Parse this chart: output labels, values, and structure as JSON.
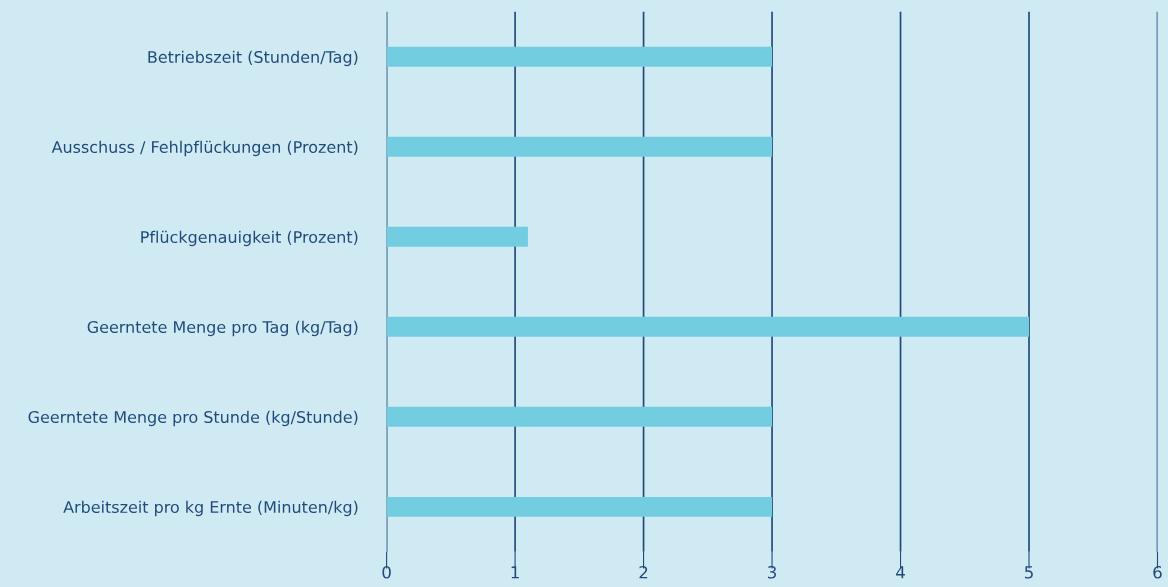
{
  "chart_data": {
    "type": "bar",
    "orientation": "horizontal",
    "categories": [
      "Betriebszeit (Stunden/Tag)",
      "Ausschuss / Fehlpflückungen (Prozent)",
      "Pflückgenauigkeit (Prozent)",
      "Geerntete Menge pro Tag (kg/Tag)",
      "Geerntete Menge pro Stunde (kg/Stunde)",
      "Arbeitszeit pro kg Ernte (Minuten/kg)"
    ],
    "values": [
      3,
      3,
      1.1,
      5,
      3,
      3
    ],
    "color": "#72cde0",
    "xlim": [
      0,
      6
    ],
    "xticks": [
      0,
      1,
      2,
      3,
      4,
      5,
      6
    ],
    "grid": "x"
  }
}
